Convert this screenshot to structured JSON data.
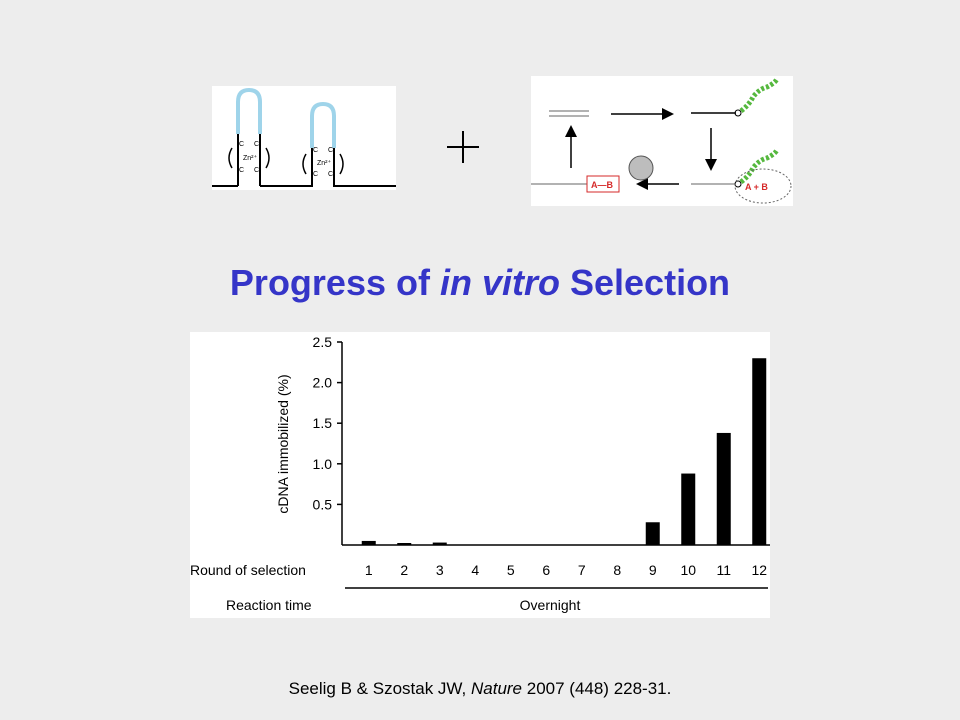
{
  "title": {
    "before": "Progress of ",
    "italic": "in vitro",
    "after": " Selection"
  },
  "citation": {
    "authors": "Seelig B & Szostak JW, ",
    "journal": "Nature",
    "rest": " 2007 (448) 228-31."
  },
  "hairpin_diagram": {
    "base_label": "C",
    "metal_label": "Zn²⁺",
    "loop_color": "#9fd4ea"
  },
  "scheme_diagram": {
    "complex_label": "A—B",
    "reactants_label": "A + B",
    "label_color": "#d62a2a",
    "peptide_color": "#55b83e"
  },
  "colors": {
    "title": "#3535c8",
    "bar": "#000000",
    "background": "#ededed"
  },
  "chart_data": {
    "type": "bar",
    "ylabel": "cDNA immobilized (%)",
    "ylim": [
      0,
      2.5
    ],
    "yticks": [
      "0.5",
      "1.0",
      "1.5",
      "2.0",
      "2.5"
    ],
    "categories": [
      "1",
      "2",
      "3",
      "4",
      "5",
      "6",
      "7",
      "8",
      "9",
      "10",
      "11",
      "12"
    ],
    "values": [
      0.05,
      0.01,
      0.03,
      0,
      0,
      0,
      0,
      0,
      0.28,
      0.88,
      1.38,
      2.3
    ],
    "row_labels": {
      "round": "Round of selection",
      "reaction_time": "Reaction time"
    },
    "reaction_time_value": "Overnight"
  }
}
